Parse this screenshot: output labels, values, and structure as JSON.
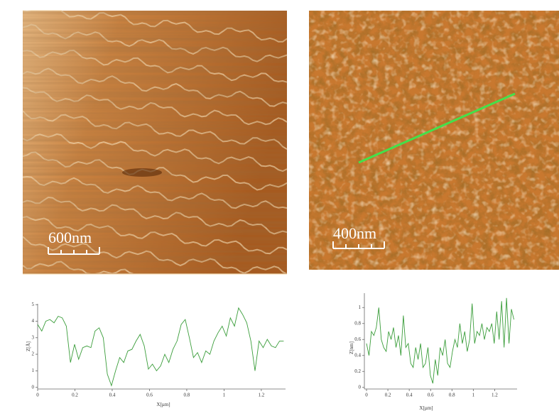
{
  "images": [
    {
      "scale_label": "600nm"
    },
    {
      "scale_label": "400nm"
    }
  ],
  "chart_data": [
    {
      "type": "line",
      "xlabel": "X[µm]",
      "ylabel": "Z[Å]",
      "xlim": [
        0,
        1.33
      ],
      "ylim": [
        -0.1,
        5.05
      ],
      "xticks": [
        0,
        0.2,
        0.4,
        0.6,
        0.8,
        1,
        1.2
      ],
      "yticks": [
        0,
        1,
        2,
        3,
        4,
        5
      ],
      "series": [
        {
          "color": "#3a9d3a",
          "x": [
            0,
            0.022,
            0.044,
            0.066,
            0.088,
            0.11,
            0.132,
            0.154,
            0.176,
            0.198,
            0.22,
            0.242,
            0.264,
            0.286,
            0.308,
            0.33,
            0.352,
            0.374,
            0.396,
            0.418,
            0.44,
            0.462,
            0.484,
            0.506,
            0.528,
            0.55,
            0.572,
            0.594,
            0.616,
            0.638,
            0.66,
            0.682,
            0.704,
            0.726,
            0.748,
            0.77,
            0.792,
            0.814,
            0.836,
            0.858,
            0.88,
            0.902,
            0.924,
            0.946,
            0.968,
            0.99,
            1.012,
            1.034,
            1.056,
            1.078,
            1.1,
            1.122,
            1.144,
            1.166,
            1.188,
            1.21,
            1.232,
            1.254,
            1.276,
            1.298,
            1.32
          ],
          "values": [
            3.8,
            3.4,
            4.0,
            4.1,
            3.9,
            4.3,
            4.2,
            3.7,
            1.5,
            2.6,
            1.7,
            2.4,
            2.5,
            2.4,
            3.4,
            3.6,
            3.0,
            0.8,
            0.1,
            1.0,
            1.8,
            1.5,
            2.2,
            2.3,
            2.8,
            3.2,
            2.5,
            1.1,
            1.4,
            1.0,
            1.3,
            2.0,
            1.5,
            2.3,
            2.8,
            3.8,
            4.1,
            3.0,
            1.8,
            2.1,
            1.5,
            2.2,
            2.0,
            2.8,
            3.3,
            3.7,
            3.1,
            4.2,
            3.7,
            4.8,
            4.4,
            3.9,
            2.8,
            1.0,
            2.8,
            2.4,
            2.9,
            2.5,
            2.4,
            2.8,
            2.8
          ]
        }
      ]
    },
    {
      "type": "line",
      "xlabel": "X[µm]",
      "ylabel": "Z[nm]",
      "xlim": [
        -0.02,
        1.41
      ],
      "ylim": [
        -0.02,
        1.18
      ],
      "xticks": [
        0,
        0.2,
        0.4,
        0.6,
        0.8,
        1,
        1.2
      ],
      "yticks": [
        0,
        0.2,
        0.4,
        0.6,
        0.8,
        1
      ],
      "series": [
        {
          "color": "#3a9d3a",
          "x": [
            0,
            0.023,
            0.046,
            0.069,
            0.092,
            0.115,
            0.138,
            0.161,
            0.184,
            0.207,
            0.23,
            0.253,
            0.276,
            0.299,
            0.322,
            0.345,
            0.368,
            0.391,
            0.414,
            0.437,
            0.46,
            0.483,
            0.506,
            0.529,
            0.552,
            0.575,
            0.598,
            0.621,
            0.644,
            0.667,
            0.69,
            0.713,
            0.736,
            0.759,
            0.782,
            0.805,
            0.828,
            0.851,
            0.874,
            0.897,
            0.92,
            0.943,
            0.966,
            0.989,
            1.012,
            1.035,
            1.058,
            1.081,
            1.104,
            1.127,
            1.15,
            1.173,
            1.196,
            1.219,
            1.242,
            1.265,
            1.288,
            1.311,
            1.334,
            1.357,
            1.38
          ],
          "values": [
            0.55,
            0.4,
            0.7,
            0.65,
            0.75,
            1.0,
            0.6,
            0.5,
            0.45,
            0.7,
            0.6,
            0.75,
            0.5,
            0.65,
            0.4,
            0.9,
            0.5,
            0.55,
            0.3,
            0.25,
            0.5,
            0.35,
            0.55,
            0.25,
            0.3,
            0.5,
            0.15,
            0.05,
            0.35,
            0.15,
            0.5,
            0.4,
            0.6,
            0.3,
            0.25,
            0.45,
            0.6,
            0.5,
            0.8,
            0.55,
            0.7,
            0.45,
            0.6,
            1.05,
            0.55,
            0.7,
            0.65,
            0.8,
            0.6,
            0.75,
            0.7,
            0.8,
            0.55,
            0.95,
            0.6,
            1.08,
            0.5,
            1.12,
            0.55,
            0.98,
            0.85
          ]
        }
      ]
    }
  ]
}
